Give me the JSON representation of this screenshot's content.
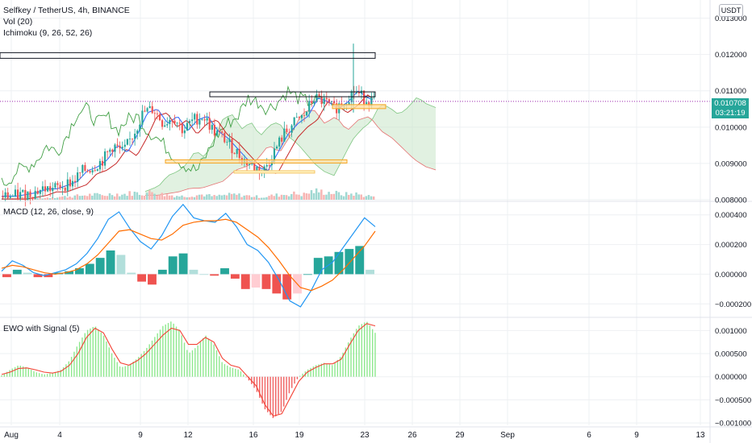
{
  "main_legend": {
    "symbol_line": "Selfkey / TetherUS, 4h, BINANCE",
    "vol_line": "Vol (20)",
    "ichimoku_line": "Ichimoku (9, 26, 52, 26)"
  },
  "macd_legend": "MACD (12, 26, close, 9)",
  "ewo_legend": "EWO with Signal (5)",
  "currency": "USDT",
  "last_price": {
    "value": "0.010708",
    "countdown": "03:21:19"
  },
  "colors": {
    "up": "#26a69a",
    "down": "#ef5350",
    "grid": "#eef0f3",
    "macd": "#2196f3",
    "signal": "#ff6d00",
    "ewo_pos": "#8ee88e",
    "ewo_neg": "#f06060",
    "ewo_signal": "#f44336",
    "chikou": "#43a047",
    "conversion": "#2962ff",
    "base": "#c62828",
    "cloud_up": "#c8e6c9",
    "cloud_down": "#ffcdd2",
    "price_line": "#9c27b0"
  },
  "chart_data": [
    {
      "type": "candlestick",
      "title": "Selfkey / TetherUS, 4h, BINANCE",
      "overlays": [
        "Vol (20)",
        "Ichimoku (9, 26, 52, 26)"
      ],
      "ylim": [
        0.008,
        0.0135
      ],
      "yticks": [
        "0.013000",
        "0.012000",
        "0.011000",
        "0.010000",
        "0.009000",
        "0.008000"
      ],
      "last_price": 0.010708,
      "x_ticks": [
        "Aug",
        "4",
        "9",
        "12",
        "16",
        "19",
        "23",
        "26",
        "29",
        "Sep",
        "6",
        "9",
        "13"
      ],
      "close_path": [
        0.0081,
        0.0081,
        0.00815,
        0.0082,
        0.0083,
        0.0083,
        0.0084,
        0.0085,
        0.0088,
        0.0089,
        0.0091,
        0.0095,
        0.0093,
        0.0098,
        0.0104,
        0.0105,
        0.0101,
        0.0103,
        0.0099,
        0.0102,
        0.0103,
        0.0099,
        0.0097,
        0.0094,
        0.0091,
        0.0089,
        0.0088,
        0.0093,
        0.0098,
        0.0101,
        0.0103,
        0.0108,
        0.0107,
        0.0105,
        0.0107,
        0.011,
        0.0108,
        0.0107
      ],
      "volume_path": [
        0.2,
        0.2,
        0.3,
        0.25,
        0.2,
        0.3,
        0.35,
        0.4,
        0.5,
        0.6,
        0.5,
        0.7,
        0.6,
        0.8,
        0.7,
        0.9,
        0.6,
        0.5,
        0.4,
        0.5,
        0.6,
        0.4,
        0.5,
        0.6,
        0.5,
        0.4,
        0.3,
        0.5,
        0.6,
        0.7,
        0.6,
        1.0,
        0.9,
        0.8,
        0.6,
        0.7,
        0.5,
        0.4
      ]
    },
    {
      "type": "line",
      "title": "MACD (12, 26, close, 9)",
      "ylim": [
        -0.00028,
        0.00048
      ],
      "yticks": [
        "0.000400",
        "0.000200",
        "0.000000",
        "−0.000200"
      ],
      "series": [
        {
          "name": "",
          "values": [
            2e-05,
            9e-05,
            6e-05,
            1e-05,
            -1e-05,
            1e-05,
            3e-05,
            7e-05,
            0.00014,
            0.00024,
            0.00037,
            0.00042,
            0.00031,
            0.00022,
            0.00017,
            0.00026,
            0.00039,
            0.00047,
            0.00038,
            0.00036,
            0.00035,
            0.00041,
            0.00032,
            0.0002,
            0.00016,
            8e-05,
            -4e-05,
            -0.00018,
            -0.00022,
            -0.00011,
            3e-05,
            8e-05,
            0.00018,
            0.00028,
            0.00038,
            0.00032
          ]
        },
        {
          "name": "",
          "values": [
            4e-05,
            6e-05,
            5e-05,
            3e-05,
            1e-05,
            0.0,
            1e-05,
            3e-05,
            7e-05,
            0.00013,
            0.00021,
            0.00029,
            0.0003,
            0.00027,
            0.00024,
            0.00023,
            0.00027,
            0.00033,
            0.00035,
            0.00036,
            0.00036,
            0.00037,
            0.00035,
            0.0003,
            0.00025,
            0.00018,
            9e-05,
            -1e-05,
            -9e-05,
            -0.00011,
            -8e-05,
            -4e-05,
            3e-05,
            0.00011,
            0.00019,
            0.00029
          ]
        }
      ],
      "histogram": [
        -2e-05,
        3e-05,
        1e-05,
        -2e-05,
        -2e-05,
        1e-05,
        2e-05,
        4e-05,
        7e-05,
        0.00011,
        0.00016,
        0.00013,
        1e-05,
        -5e-05,
        -7e-05,
        3e-05,
        0.00012,
        0.00014,
        3e-05,
        0.0,
        -1e-05,
        4e-05,
        -3e-05,
        -0.0001,
        -9e-05,
        -0.0001,
        -0.00013,
        -0.00017,
        -0.00013,
        0.0,
        0.00011,
        0.00012,
        0.00015,
        0.00017,
        0.00019,
        3e-05
      ]
    },
    {
      "type": "bar",
      "title": "EWO with Signal (5)",
      "ylim": [
        -0.00105,
        0.00125
      ],
      "yticks": [
        "0.001000",
        "0.000500",
        "0.000000",
        "−0.000500",
        "−0.001000"
      ],
      "values": [
        3e-05,
        0.00015,
        0.00025,
        0.0002,
        0.0001,
        5e-05,
        8e-05,
        0.00015,
        0.00035,
        0.0007,
        0.001,
        0.0011,
        0.0009,
        0.0005,
        0.0002,
        0.00025,
        0.0004,
        0.0006,
        0.00085,
        0.0011,
        0.0012,
        0.001,
        0.0005,
        0.00065,
        0.0009,
        0.0007,
        0.0003,
        0.0002,
        0.00015,
        -5e-05,
        -0.0003,
        -0.0007,
        -0.0009,
        -0.00075,
        -0.0003,
        0.0,
        0.00015,
        0.00025,
        0.0003,
        0.00025,
        0.00045,
        0.0008,
        0.0011,
        0.0012,
        0.00095
      ],
      "signal": [
        5e-05,
        0.0001,
        0.00018,
        0.00019,
        0.00015,
        0.0001,
        8e-05,
        0.00012,
        0.00025,
        0.0005,
        0.00085,
        0.00105,
        0.00095,
        0.0006,
        0.0003,
        0.00025,
        0.00035,
        0.0005,
        0.0007,
        0.0009,
        0.00105,
        0.001,
        0.0007,
        0.0007,
        0.00085,
        0.00075,
        0.0004,
        0.00025,
        0.0002,
        0.0,
        -0.0002,
        -0.0006,
        -0.00085,
        -0.0008,
        -0.00045,
        -0.0001,
        0.0001,
        0.0002,
        0.00028,
        0.00028,
        0.00038,
        0.0007,
        0.001,
        0.00115,
        0.0011
      ]
    }
  ]
}
